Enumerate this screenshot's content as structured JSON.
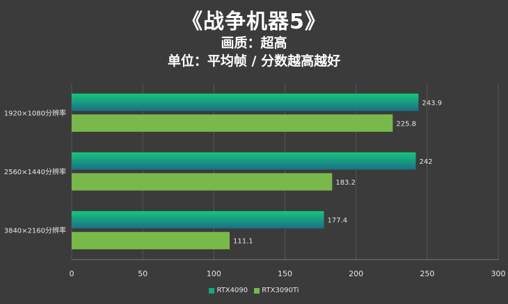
{
  "header": {
    "title": "《战争机器5》",
    "subtitle": "画质：超高",
    "note": "单位：平均帧 / 分数越高越好"
  },
  "colors": {
    "background": "#3b3b3b",
    "grid": "#555555",
    "RTX4090_top": "#17c57d",
    "RTX4090_bottom": "#1a6f86",
    "RTX3090Ti": "#79b84a",
    "text": "#ffffff"
  },
  "chart_data": {
    "type": "bar",
    "orientation": "horizontal",
    "title": "《战争机器5》",
    "subtitle": "画质：超高",
    "categories": [
      "1920×1080分辨率",
      "2560×1440分辨率",
      "3840×2160分辨率"
    ],
    "series": [
      {
        "name": "RTX4090",
        "values": [
          243.9,
          242,
          177.4
        ]
      },
      {
        "name": "RTX3090Ti",
        "values": [
          225.8,
          183.2,
          111.1
        ]
      }
    ],
    "value_labels": [
      [
        "243.9",
        "242",
        "177.4"
      ],
      [
        "225.8",
        "183.2",
        "111.1"
      ]
    ],
    "xlim": [
      0,
      300
    ],
    "xticks": [
      0,
      50,
      100,
      150,
      200,
      250,
      300
    ],
    "xtick_labels": [
      "0",
      "50",
      "100",
      "150",
      "200",
      "250",
      "300"
    ],
    "grid": true,
    "legend_position": "bottom"
  }
}
